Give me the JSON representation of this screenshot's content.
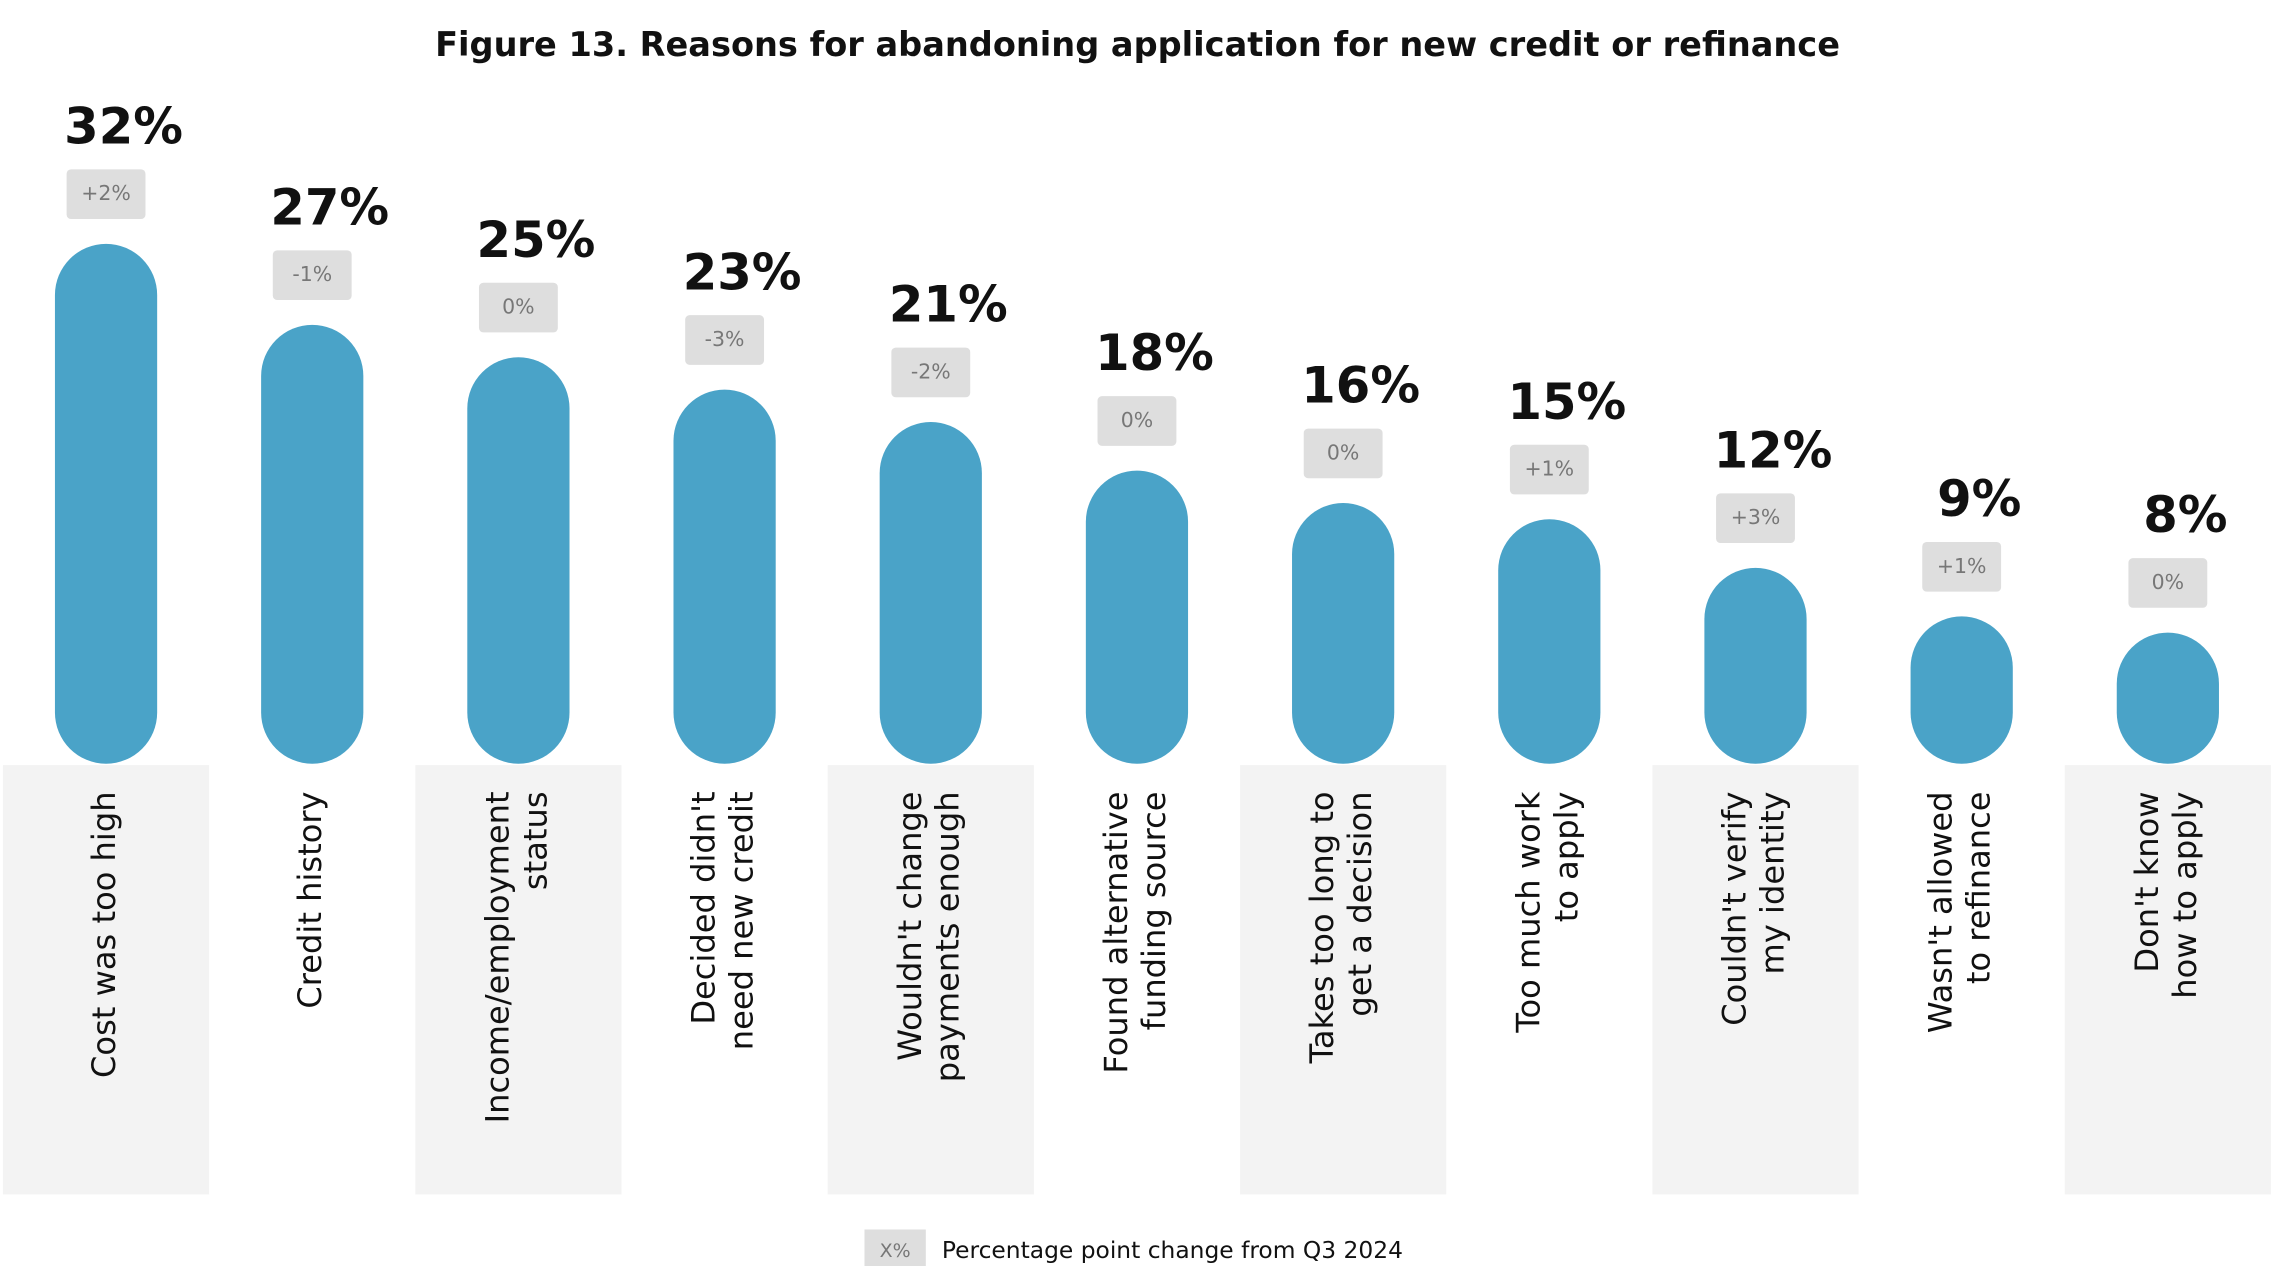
{
  "chart_data": {
    "type": "bar",
    "title": "Figure 13. Reasons for abandoning application for new credit or refinance",
    "categories": [
      [
        "Cost was too high"
      ],
      [
        "Credit history"
      ],
      [
        "Income/employment",
        "status"
      ],
      [
        "Decided didn't",
        "need new credit"
      ],
      [
        "Wouldn't change",
        "payments enough"
      ],
      [
        "Found alternative",
        "funding source"
      ],
      [
        "Takes too long to",
        "get a decision"
      ],
      [
        "Too much work",
        "to apply"
      ],
      [
        "Couldn't verify",
        "my identity"
      ],
      [
        "Wasn't allowed",
        "to refinance"
      ],
      [
        "Don't know",
        "how to apply"
      ]
    ],
    "values": [
      32,
      27,
      25,
      23,
      21,
      18,
      16,
      15,
      12,
      9,
      8
    ],
    "value_labels": [
      "32%",
      "27%",
      "25%",
      "23%",
      "21%",
      "18%",
      "16%",
      "15%",
      "12%",
      "9%",
      "8%"
    ],
    "changes": [
      2,
      -1,
      0,
      -3,
      -2,
      0,
      0,
      1,
      3,
      1,
      0
    ],
    "change_labels": [
      "+2%",
      "-1%",
      "0%",
      "-3%",
      "-2%",
      "0%",
      "0%",
      "+1%",
      "+3%",
      "+1%",
      "0%"
    ],
    "color": "#4aa3c8",
    "ylim": [
      0,
      32
    ],
    "legend": {
      "key": "X%",
      "text": "Percentage point change from Q3 2024"
    }
  }
}
